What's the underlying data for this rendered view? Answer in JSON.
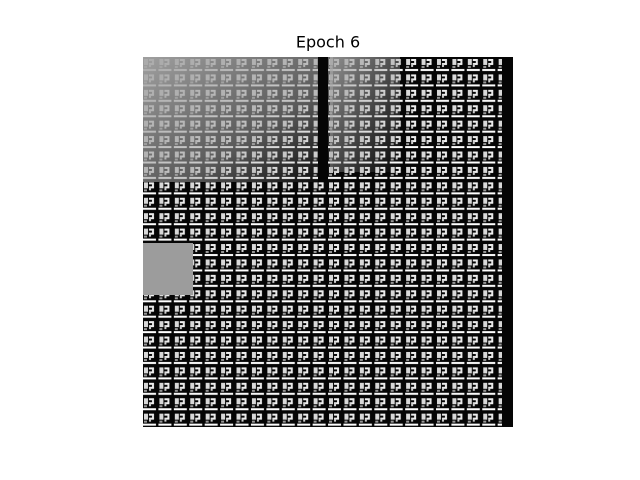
{
  "figure": {
    "title": "Epoch 6"
  }
}
